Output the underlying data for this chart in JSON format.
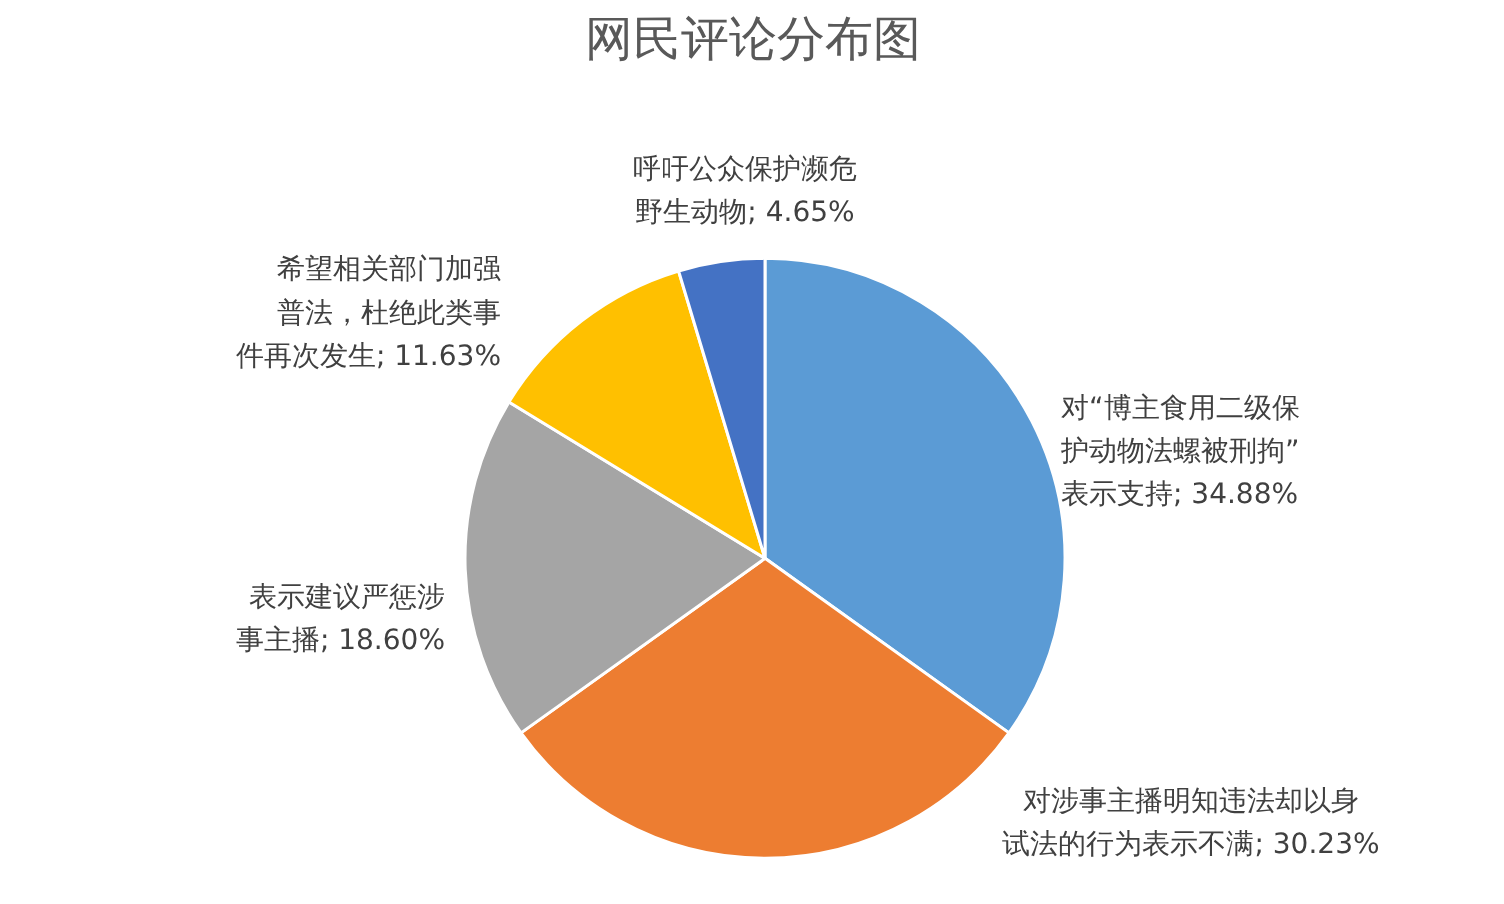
{
  "chart_data": {
    "type": "pie",
    "title": "网民评论分布图",
    "categories": [
      "对“博主食用二级保护动物法螺被刑拘”表示支持",
      "对涉事主播明知违法却以身试法的行为表示不满",
      "表示建议严惩涉事主播",
      "希望相关部门加强普法，杜绝此类事件再次发生",
      "呼吁公众保护濒危野生动物"
    ],
    "values": [
      34.88,
      30.23,
      18.6,
      11.63,
      4.65
    ],
    "value_labels": [
      "34.88%",
      "30.23%",
      "18.60%",
      "11.63%",
      "4.65%"
    ],
    "colors": [
      "#5b9bd5",
      "#ed7d31",
      "#a5a5a5",
      "#ffc000",
      "#4472c4"
    ]
  }
}
